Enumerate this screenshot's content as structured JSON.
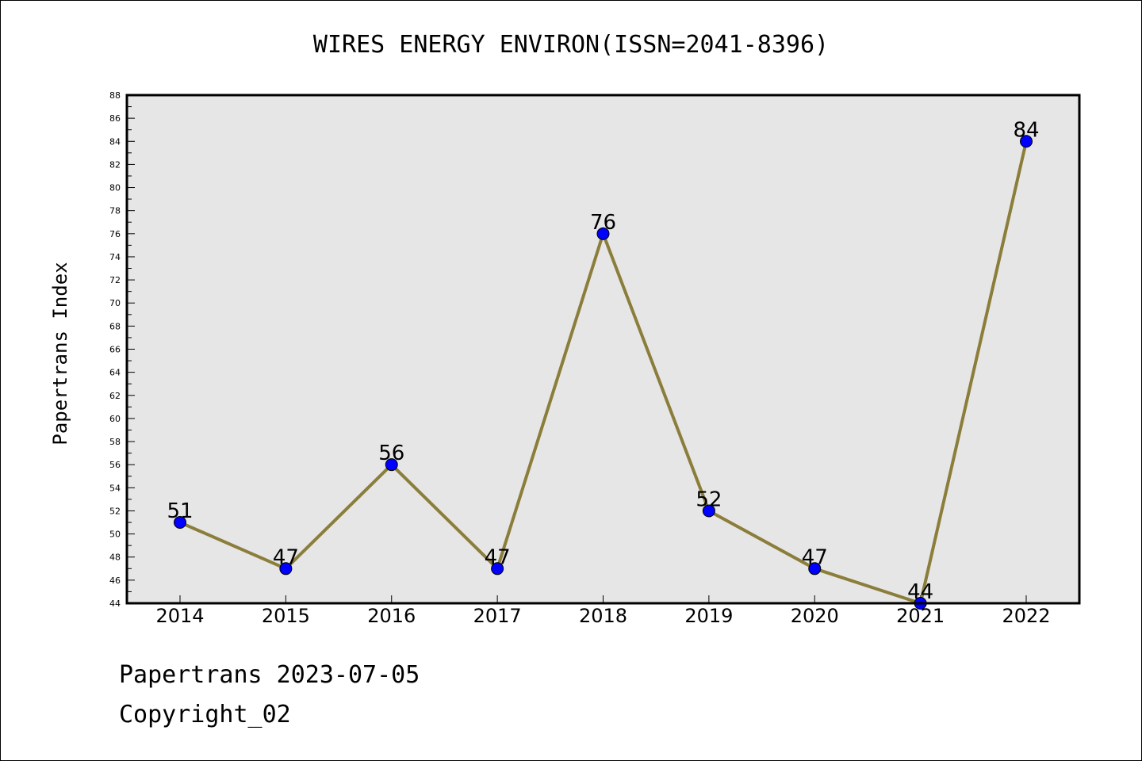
{
  "footer": {
    "line1": "Papertrans 2023-07-05",
    "line2": "Copyright_02"
  },
  "chart_data": {
    "type": "line",
    "title": "WIRES ENERGY ENVIRON(ISSN=2041-8396)",
    "xlabel": "",
    "ylabel": "Papertrans Index",
    "categories": [
      "2014",
      "2015",
      "2016",
      "2017",
      "2018",
      "2019",
      "2020",
      "2021",
      "2022"
    ],
    "series": [
      {
        "values": [
          51,
          47,
          56,
          47,
          76,
          52,
          47,
          44,
          84
        ]
      }
    ],
    "ylim": [
      44,
      88
    ],
    "yticks": [
      44,
      46,
      48,
      50,
      52,
      54,
      56,
      58,
      60,
      62,
      64,
      66,
      68,
      70,
      72,
      74,
      76,
      78,
      80,
      82,
      84,
      86,
      88
    ],
    "data_labels": true,
    "grid": false,
    "legend": "none",
    "colors": {
      "line": "#8B7D3A",
      "marker": "#0000FF",
      "plot_background": "#E6E6E6"
    }
  }
}
